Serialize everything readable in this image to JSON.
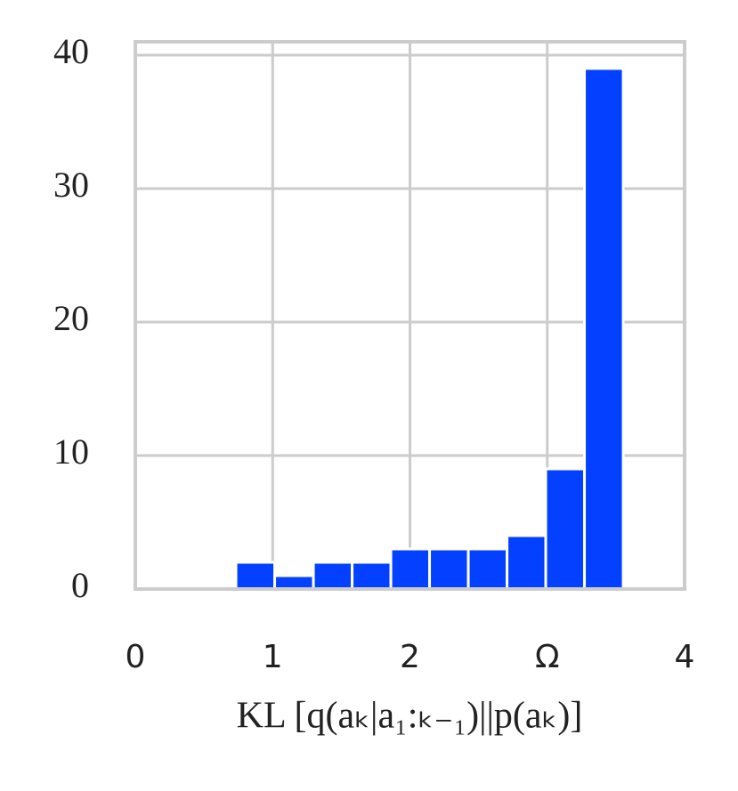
{
  "chart_data": {
    "type": "histogram",
    "xlabel": "KL [q(aₖ|a₁:ₖ₋₁)||p(aₖ)]",
    "bins": [
      0.733,
      1.015,
      1.297,
      1.579,
      1.861,
      2.143,
      2.425,
      2.707,
      2.989,
      3.271,
      3.553
    ],
    "values": [
      2,
      1,
      2,
      2,
      3,
      3,
      3,
      4,
      9,
      39
    ],
    "color": "#0340ff",
    "xlim": [
      0,
      4
    ],
    "xticks": [
      0,
      1,
      2,
      {
        "value": 3,
        "label": "Ω"
      },
      4
    ],
    "ylim": [
      0,
      41
    ],
    "yticks": [
      0,
      10,
      20,
      30,
      40
    ],
    "grid": true
  }
}
